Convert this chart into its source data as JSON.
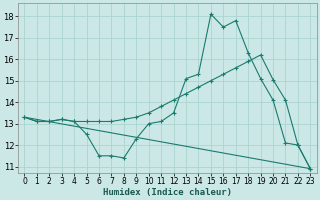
{
  "xlabel": "Humidex (Indice chaleur)",
  "background_color": "#cce8e6",
  "grid_color": "#aad4d0",
  "line_color": "#1a7a6e",
  "xlim": [
    -0.5,
    23.5
  ],
  "ylim": [
    10.7,
    18.6
  ],
  "yticks": [
    11,
    12,
    13,
    14,
    15,
    16,
    17,
    18
  ],
  "xticks": [
    0,
    1,
    2,
    3,
    4,
    5,
    6,
    7,
    8,
    9,
    10,
    11,
    12,
    13,
    14,
    15,
    16,
    17,
    18,
    19,
    20,
    21,
    22,
    23
  ],
  "series1_x": [
    0,
    1,
    2,
    3,
    4,
    5,
    6,
    7,
    8,
    9,
    10,
    11,
    12,
    13,
    14,
    15,
    16,
    17,
    18,
    19,
    20,
    21,
    22,
    23
  ],
  "series1_y": [
    13.3,
    13.1,
    13.1,
    13.2,
    13.1,
    12.5,
    11.5,
    11.5,
    11.4,
    12.3,
    13.0,
    13.1,
    13.5,
    15.1,
    15.3,
    18.1,
    17.5,
    17.8,
    16.3,
    15.1,
    14.1,
    12.1,
    12.0,
    10.9
  ],
  "series2_x": [
    0,
    1,
    2,
    3,
    4,
    5,
    6,
    7,
    8,
    9,
    10,
    11,
    12,
    13,
    14,
    15,
    16,
    17,
    18,
    19,
    20,
    21,
    22,
    23
  ],
  "series2_y": [
    13.3,
    13.1,
    13.1,
    13.2,
    13.1,
    13.1,
    13.1,
    13.1,
    13.2,
    13.3,
    13.5,
    13.8,
    14.1,
    14.4,
    14.7,
    15.0,
    15.3,
    15.6,
    15.9,
    16.2,
    15.05,
    14.1,
    12.0,
    10.9
  ],
  "series3_x": [
    0,
    23
  ],
  "series3_y": [
    13.3,
    10.9
  ]
}
